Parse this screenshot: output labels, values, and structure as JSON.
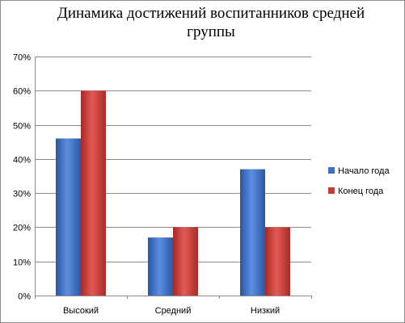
{
  "chart_data": {
    "type": "bar",
    "title": "Динамика достижений воспитанников средней группы",
    "categories": [
      "Высокий",
      "Средний",
      "Низкий"
    ],
    "series": [
      {
        "name": "Начало года",
        "values": [
          46,
          17,
          37
        ],
        "color": "#3f6fc4"
      },
      {
        "name": "Конец года",
        "values": [
          60,
          20,
          20
        ],
        "color": "#c53a37"
      }
    ],
    "y_ticks": [
      "0%",
      "10%",
      "20%",
      "30%",
      "40%",
      "50%",
      "60%",
      "70%"
    ],
    "ylim": [
      0,
      70
    ],
    "xlabel": "",
    "ylabel": "",
    "grid": true,
    "legend_position": "right"
  }
}
